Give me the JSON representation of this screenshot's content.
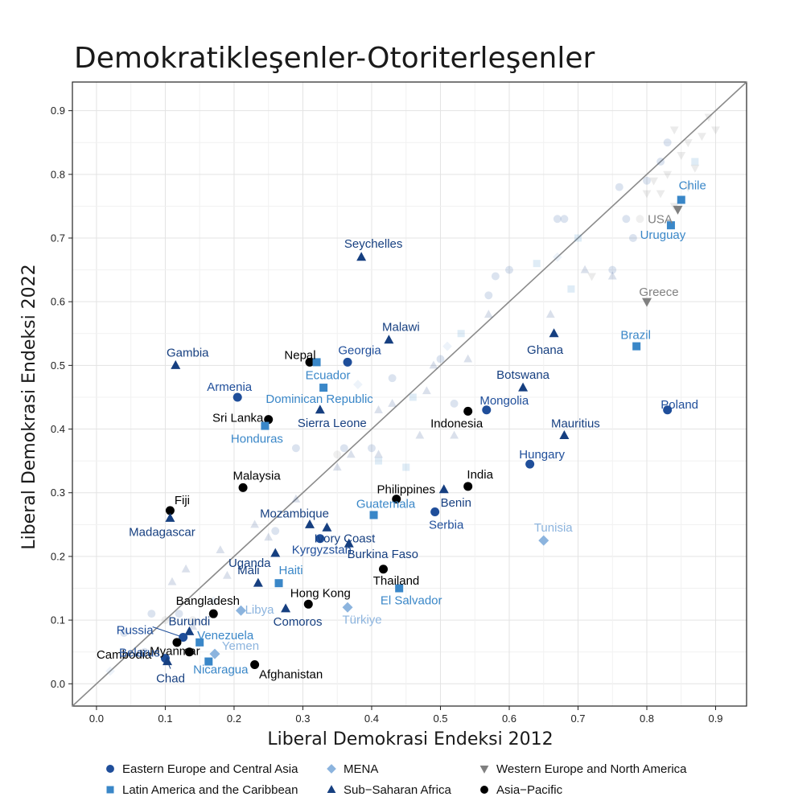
{
  "chart_data": {
    "type": "scatter",
    "title": "Demokratikleşenler-Otoriterleşenler",
    "xlabel": "Liberal Demokrasi Endeksi 2012",
    "ylabel": "Liberal Demokrasi Endeksi 2022",
    "xlim": [
      -0.035,
      0.945
    ],
    "ylim": [
      -0.035,
      0.945
    ],
    "xticks": [
      "0.0",
      "0.1",
      "0.2",
      "0.3",
      "0.4",
      "0.5",
      "0.6",
      "0.7",
      "0.8",
      "0.9"
    ],
    "yticks": [
      "0.0",
      "0.1",
      "0.2",
      "0.3",
      "0.4",
      "0.5",
      "0.6",
      "0.7",
      "0.8",
      "0.9"
    ],
    "grid": true,
    "diagonal_reference_line": true,
    "legend_position": "bottom",
    "regions": [
      {
        "key": "eeca",
        "name": "Eastern Europe and Central Asia",
        "marker": "circle",
        "color": "#1f4e9a"
      },
      {
        "key": "lac",
        "name": "Latin America and the Caribbean",
        "marker": "square",
        "color": "#3a87c8"
      },
      {
        "key": "mena",
        "name": "MENA",
        "marker": "diamond",
        "color": "#8cb4de"
      },
      {
        "key": "ssa",
        "name": "Sub−Saharan Africa",
        "marker": "triangle",
        "color": "#163f80"
      },
      {
        "key": "wena",
        "name": "Western Europe and North America",
        "marker": "triangle-down",
        "color": "#808080"
      },
      {
        "key": "ap",
        "name": "Asia−Pacific",
        "marker": "circle",
        "color": "#000000"
      }
    ],
    "labeled_points": [
      {
        "name": "Chile",
        "region": "lac",
        "x": 0.85,
        "y": 0.76
      },
      {
        "name": "USA",
        "region": "wena",
        "x": 0.845,
        "y": 0.745
      },
      {
        "name": "Uruguay",
        "region": "lac",
        "x": 0.835,
        "y": 0.72
      },
      {
        "name": "Greece",
        "region": "wena",
        "x": 0.8,
        "y": 0.6
      },
      {
        "name": "Brazil",
        "region": "lac",
        "x": 0.785,
        "y": 0.53
      },
      {
        "name": "Poland",
        "region": "eeca",
        "x": 0.83,
        "y": 0.43
      },
      {
        "name": "Seychelles",
        "region": "ssa",
        "x": 0.385,
        "y": 0.67
      },
      {
        "name": "Malawi",
        "region": "ssa",
        "x": 0.425,
        "y": 0.54
      },
      {
        "name": "Ghana",
        "region": "ssa",
        "x": 0.665,
        "y": 0.55
      },
      {
        "name": "Gambia",
        "region": "ssa",
        "x": 0.115,
        "y": 0.5
      },
      {
        "name": "Nepal",
        "region": "ap",
        "x": 0.31,
        "y": 0.505
      },
      {
        "name": "Georgia",
        "region": "eeca",
        "x": 0.365,
        "y": 0.505
      },
      {
        "name": "Ecuador",
        "region": "lac",
        "x": 0.32,
        "y": 0.505
      },
      {
        "name": "Armenia",
        "region": "eeca",
        "x": 0.205,
        "y": 0.45
      },
      {
        "name": "Dominican Republic",
        "region": "lac",
        "x": 0.33,
        "y": 0.465
      },
      {
        "name": "Botswana",
        "region": "ssa",
        "x": 0.62,
        "y": 0.465
      },
      {
        "name": "Sri Lanka",
        "region": "ap",
        "x": 0.25,
        "y": 0.415
      },
      {
        "name": "Sierra Leone",
        "region": "ssa",
        "x": 0.325,
        "y": 0.43
      },
      {
        "name": "Honduras",
        "region": "lac",
        "x": 0.245,
        "y": 0.405
      },
      {
        "name": "Indonesia",
        "region": "ap",
        "x": 0.54,
        "y": 0.428
      },
      {
        "name": "Mongolia",
        "region": "eeca",
        "x": 0.567,
        "y": 0.43
      },
      {
        "name": "Mauritius",
        "region": "ssa",
        "x": 0.68,
        "y": 0.39
      },
      {
        "name": "Hungary",
        "region": "eeca",
        "x": 0.63,
        "y": 0.345
      },
      {
        "name": "Malaysia",
        "region": "ap",
        "x": 0.213,
        "y": 0.308
      },
      {
        "name": "India",
        "region": "ap",
        "x": 0.54,
        "y": 0.31
      },
      {
        "name": "Philippines",
        "region": "ap",
        "x": 0.436,
        "y": 0.29
      },
      {
        "name": "Benin",
        "region": "ssa",
        "x": 0.505,
        "y": 0.305
      },
      {
        "name": "Fiji",
        "region": "ap",
        "x": 0.107,
        "y": 0.272
      },
      {
        "name": "Guatemala",
        "region": "lac",
        "x": 0.403,
        "y": 0.265
      },
      {
        "name": "Serbia",
        "region": "eeca",
        "x": 0.492,
        "y": 0.27
      },
      {
        "name": "Madagascar",
        "region": "ssa",
        "x": 0.107,
        "y": 0.26
      },
      {
        "name": "Mozambique",
        "region": "ssa",
        "x": 0.31,
        "y": 0.25
      },
      {
        "name": "Ivory Coast",
        "region": "ssa",
        "x": 0.335,
        "y": 0.245
      },
      {
        "name": "Kyrgyzstan",
        "region": "eeca",
        "x": 0.325,
        "y": 0.228
      },
      {
        "name": "Tunisia",
        "region": "mena",
        "x": 0.65,
        "y": 0.225
      },
      {
        "name": "Burkina Faso",
        "region": "ssa",
        "x": 0.367,
        "y": 0.22
      },
      {
        "name": "Uganda",
        "region": "ssa",
        "x": 0.26,
        "y": 0.205
      },
      {
        "name": "Thailand",
        "region": "ap",
        "x": 0.417,
        "y": 0.18
      },
      {
        "name": "Mali",
        "region": "ssa",
        "x": 0.235,
        "y": 0.158
      },
      {
        "name": "Haiti",
        "region": "lac",
        "x": 0.265,
        "y": 0.158
      },
      {
        "name": "El Salvador",
        "region": "lac",
        "x": 0.44,
        "y": 0.15
      },
      {
        "name": "Hong Kong",
        "region": "ap",
        "x": 0.308,
        "y": 0.125
      },
      {
        "name": "Bangladesh",
        "region": "ap",
        "x": 0.17,
        "y": 0.11
      },
      {
        "name": "Libya",
        "region": "mena",
        "x": 0.21,
        "y": 0.115
      },
      {
        "name": "Comoros",
        "region": "ssa",
        "x": 0.275,
        "y": 0.118
      },
      {
        "name": "Türkiye",
        "region": "mena",
        "x": 0.365,
        "y": 0.12
      },
      {
        "name": "Burundi",
        "region": "ssa",
        "x": 0.135,
        "y": 0.082
      },
      {
        "name": "Russia",
        "region": "eeca",
        "x": 0.126,
        "y": 0.073
      },
      {
        "name": "Venezuela",
        "region": "lac",
        "x": 0.15,
        "y": 0.065
      },
      {
        "name": "Cambodia",
        "region": "ap",
        "x": 0.117,
        "y": 0.065
      },
      {
        "name": "Myanmar",
        "region": "ap",
        "x": 0.135,
        "y": 0.05
      },
      {
        "name": "Yemen",
        "region": "mena",
        "x": 0.172,
        "y": 0.047
      },
      {
        "name": "Belarus",
        "region": "eeca",
        "x": 0.1,
        "y": 0.04
      },
      {
        "name": "Nicaragua",
        "region": "lac",
        "x": 0.163,
        "y": 0.035
      },
      {
        "name": "Chad",
        "region": "ssa",
        "x": 0.103,
        "y": 0.035
      },
      {
        "name": "Afghanistan",
        "region": "ap",
        "x": 0.23,
        "y": 0.03
      }
    ],
    "background_points": [
      {
        "region": "eeca",
        "x": 0.83,
        "y": 0.85
      },
      {
        "region": "eeca",
        "x": 0.82,
        "y": 0.82
      },
      {
        "region": "eeca",
        "x": 0.8,
        "y": 0.79
      },
      {
        "region": "eeca",
        "x": 0.76,
        "y": 0.78
      },
      {
        "region": "eeca",
        "x": 0.67,
        "y": 0.73
      },
      {
        "region": "eeca",
        "x": 0.68,
        "y": 0.73
      },
      {
        "region": "eeca",
        "x": 0.77,
        "y": 0.73
      },
      {
        "region": "eeca",
        "x": 0.78,
        "y": 0.7
      },
      {
        "region": "eeca",
        "x": 0.6,
        "y": 0.65
      },
      {
        "region": "eeca",
        "x": 0.58,
        "y": 0.64
      },
      {
        "region": "eeca",
        "x": 0.57,
        "y": 0.61
      },
      {
        "region": "eeca",
        "x": 0.75,
        "y": 0.65
      },
      {
        "region": "eeca",
        "x": 0.4,
        "y": 0.37
      },
      {
        "region": "eeca",
        "x": 0.36,
        "y": 0.37
      },
      {
        "region": "eeca",
        "x": 0.29,
        "y": 0.37
      },
      {
        "region": "eeca",
        "x": 0.5,
        "y": 0.51
      },
      {
        "region": "eeca",
        "x": 0.43,
        "y": 0.48
      },
      {
        "region": "eeca",
        "x": 0.52,
        "y": 0.44
      },
      {
        "region": "eeca",
        "x": 0.26,
        "y": 0.24
      },
      {
        "region": "eeca",
        "x": 0.12,
        "y": 0.11
      },
      {
        "region": "eeca",
        "x": 0.08,
        "y": 0.11
      },
      {
        "region": "eeca",
        "x": 0.04,
        "y": 0.08
      },
      {
        "region": "eeca",
        "x": 0.07,
        "y": 0.05
      },
      {
        "region": "lac",
        "x": 0.87,
        "y": 0.82
      },
      {
        "region": "lac",
        "x": 0.7,
        "y": 0.7
      },
      {
        "region": "lac",
        "x": 0.69,
        "y": 0.62
      },
      {
        "region": "lac",
        "x": 0.64,
        "y": 0.66
      },
      {
        "region": "lac",
        "x": 0.53,
        "y": 0.55
      },
      {
        "region": "lac",
        "x": 0.46,
        "y": 0.45
      },
      {
        "region": "lac",
        "x": 0.41,
        "y": 0.35
      },
      {
        "region": "lac",
        "x": 0.45,
        "y": 0.34
      },
      {
        "region": "mena",
        "x": 0.67,
        "y": 0.67
      },
      {
        "region": "mena",
        "x": 0.51,
        "y": 0.53
      },
      {
        "region": "mena",
        "x": 0.38,
        "y": 0.47
      },
      {
        "region": "mena",
        "x": 0.17,
        "y": 0.13
      },
      {
        "region": "mena",
        "x": 0.02,
        "y": 0.02
      },
      {
        "region": "ssa",
        "x": 0.71,
        "y": 0.65
      },
      {
        "region": "ssa",
        "x": 0.75,
        "y": 0.64
      },
      {
        "region": "ssa",
        "x": 0.66,
        "y": 0.58
      },
      {
        "region": "ssa",
        "x": 0.57,
        "y": 0.58
      },
      {
        "region": "ssa",
        "x": 0.54,
        "y": 0.51
      },
      {
        "region": "ssa",
        "x": 0.49,
        "y": 0.5
      },
      {
        "region": "ssa",
        "x": 0.43,
        "y": 0.44
      },
      {
        "region": "ssa",
        "x": 0.41,
        "y": 0.43
      },
      {
        "region": "ssa",
        "x": 0.37,
        "y": 0.36
      },
      {
        "region": "ssa",
        "x": 0.48,
        "y": 0.46
      },
      {
        "region": "ssa",
        "x": 0.47,
        "y": 0.39
      },
      {
        "region": "ssa",
        "x": 0.52,
        "y": 0.39
      },
      {
        "region": "ssa",
        "x": 0.35,
        "y": 0.34
      },
      {
        "region": "ssa",
        "x": 0.41,
        "y": 0.36
      },
      {
        "region": "ssa",
        "x": 0.29,
        "y": 0.29
      },
      {
        "region": "ssa",
        "x": 0.23,
        "y": 0.25
      },
      {
        "region": "ssa",
        "x": 0.18,
        "y": 0.21
      },
      {
        "region": "ssa",
        "x": 0.13,
        "y": 0.18
      },
      {
        "region": "ssa",
        "x": 0.11,
        "y": 0.16
      },
      {
        "region": "ssa",
        "x": 0.19,
        "y": 0.17
      },
      {
        "region": "ssa",
        "x": 0.25,
        "y": 0.23
      },
      {
        "region": "ssa",
        "x": 0.14,
        "y": 0.09
      },
      {
        "region": "wena",
        "x": 0.89,
        "y": 0.89
      },
      {
        "region": "wena",
        "x": 0.88,
        "y": 0.86
      },
      {
        "region": "wena",
        "x": 0.86,
        "y": 0.85
      },
      {
        "region": "wena",
        "x": 0.84,
        "y": 0.87
      },
      {
        "region": "wena",
        "x": 0.9,
        "y": 0.87
      },
      {
        "region": "wena",
        "x": 0.87,
        "y": 0.81
      },
      {
        "region": "wena",
        "x": 0.83,
        "y": 0.8
      },
      {
        "region": "wena",
        "x": 0.81,
        "y": 0.79
      },
      {
        "region": "wena",
        "x": 0.85,
        "y": 0.83
      },
      {
        "region": "wena",
        "x": 0.86,
        "y": 0.78
      },
      {
        "region": "wena",
        "x": 0.84,
        "y": 0.75
      },
      {
        "region": "wena",
        "x": 0.82,
        "y": 0.77
      },
      {
        "region": "wena",
        "x": 0.8,
        "y": 0.77
      },
      {
        "region": "wena",
        "x": 0.72,
        "y": 0.64
      },
      {
        "region": "ap",
        "x": 0.79,
        "y": 0.73
      },
      {
        "region": "ap",
        "x": 0.35,
        "y": 0.36
      },
      {
        "region": "ap",
        "x": 0.14,
        "y": 0.1
      },
      {
        "region": "ap",
        "x": 0.1,
        "y": 0.1
      }
    ]
  }
}
